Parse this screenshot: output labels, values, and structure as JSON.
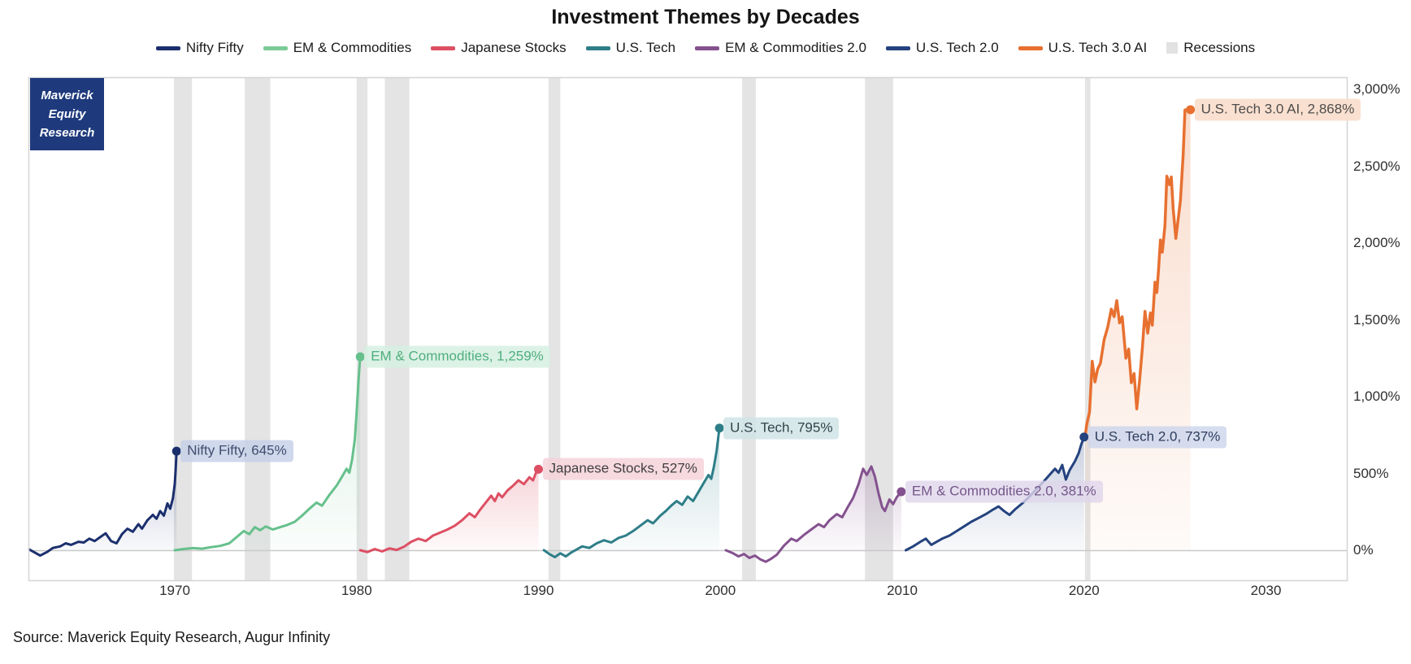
{
  "title": "Investment Themes by Decades",
  "source": "Source: Maverick Equity Research, Augur Infinity",
  "logo": {
    "lines": [
      "Maverick",
      "Equity",
      "Research"
    ],
    "bg": "#1e3a7c",
    "text_color": "#ffffff"
  },
  "legend": [
    {
      "label": "Nifty Fifty",
      "color": "#1b2f6d",
      "type": "line"
    },
    {
      "label": "EM & Commodities",
      "color": "#7ccb96",
      "type": "line"
    },
    {
      "label": "Japanese Stocks",
      "color": "#dd4f63",
      "type": "line"
    },
    {
      "label": "U.S. Tech",
      "color": "#2e7e88",
      "type": "line"
    },
    {
      "label": "EM & Commodities 2.0",
      "color": "#84518f",
      "type": "line"
    },
    {
      "label": "U.S. Tech 2.0",
      "color": "#24427e",
      "type": "line"
    },
    {
      "label": "U.S. Tech 3.0 AI",
      "color": "#e77030",
      "type": "line"
    },
    {
      "label": "Recessions",
      "color": "#e2e2e2",
      "type": "box"
    }
  ],
  "chart_data": {
    "type": "line",
    "title": "Investment Themes by Decades",
    "xlabel": "",
    "ylabel": "",
    "x_range": [
      1962,
      2034.5
    ],
    "y_range_pct": [
      -160,
      3080
    ],
    "grid": "zero-line-only",
    "legend_position": "top-center",
    "axis_line_color": "#d4d4d4",
    "zero_line_color": "#c9c9c9",
    "recession_color": "#e4e4e4",
    "x_ticks": [
      {
        "value": 1970,
        "label": "1970"
      },
      {
        "value": 1980,
        "label": "1980"
      },
      {
        "value": 1990,
        "label": "1990"
      },
      {
        "value": 2000,
        "label": "2000"
      },
      {
        "value": 2010,
        "label": "2010"
      },
      {
        "value": 2020,
        "label": "2020"
      },
      {
        "value": 2030,
        "label": "2030"
      }
    ],
    "y_ticks": [
      {
        "value": 0,
        "label": "0%"
      },
      {
        "value": 500,
        "label": "500%"
      },
      {
        "value": 1000,
        "label": "1,000%"
      },
      {
        "value": 1500,
        "label": "1,500%"
      },
      {
        "value": 2000,
        "label": "2,000%"
      },
      {
        "value": 2500,
        "label": "2,500%"
      },
      {
        "value": 3000,
        "label": "3,000%"
      }
    ],
    "recessions": [
      [
        1969.95,
        1970.95
      ],
      [
        1973.85,
        1975.25
      ],
      [
        1980.0,
        1980.6
      ],
      [
        1981.55,
        1982.9
      ],
      [
        1990.55,
        1991.2
      ],
      [
        2001.2,
        2001.95
      ],
      [
        2007.95,
        2009.5
      ],
      [
        2020.05,
        2020.35
      ]
    ],
    "series": [
      {
        "name": "Nifty Fifty",
        "color": "#1b2f6d",
        "end_value_pct": 645,
        "points": [
          [
            1962.0,
            5
          ],
          [
            1962.3,
            -15
          ],
          [
            1962.6,
            -35
          ],
          [
            1963.0,
            -10
          ],
          [
            1963.3,
            15
          ],
          [
            1963.7,
            25
          ],
          [
            1964.0,
            45
          ],
          [
            1964.3,
            35
          ],
          [
            1964.7,
            55
          ],
          [
            1965.0,
            50
          ],
          [
            1965.3,
            75
          ],
          [
            1965.6,
            60
          ],
          [
            1965.9,
            85
          ],
          [
            1966.2,
            110
          ],
          [
            1966.5,
            60
          ],
          [
            1966.8,
            45
          ],
          [
            1967.1,
            105
          ],
          [
            1967.4,
            140
          ],
          [
            1967.7,
            120
          ],
          [
            1968.0,
            170
          ],
          [
            1968.2,
            140
          ],
          [
            1968.5,
            195
          ],
          [
            1968.8,
            230
          ],
          [
            1969.0,
            205
          ],
          [
            1969.2,
            255
          ],
          [
            1969.4,
            225
          ],
          [
            1969.6,
            305
          ],
          [
            1969.75,
            270
          ],
          [
            1969.9,
            340
          ],
          [
            1970.0,
            430
          ],
          [
            1970.05,
            520
          ],
          [
            1970.1,
            645
          ]
        ]
      },
      {
        "name": "EM & Commodities",
        "color": "#66c08c",
        "end_value_pct": 1259,
        "points": [
          [
            1970.0,
            0
          ],
          [
            1970.5,
            8
          ],
          [
            1971.0,
            14
          ],
          [
            1971.5,
            10
          ],
          [
            1972.0,
            20
          ],
          [
            1972.5,
            28
          ],
          [
            1973.0,
            45
          ],
          [
            1973.4,
            85
          ],
          [
            1973.8,
            125
          ],
          [
            1974.1,
            105
          ],
          [
            1974.4,
            150
          ],
          [
            1974.7,
            130
          ],
          [
            1975.0,
            155
          ],
          [
            1975.4,
            135
          ],
          [
            1975.8,
            150
          ],
          [
            1976.2,
            165
          ],
          [
            1976.6,
            185
          ],
          [
            1977.0,
            225
          ],
          [
            1977.4,
            270
          ],
          [
            1977.8,
            310
          ],
          [
            1978.1,
            290
          ],
          [
            1978.5,
            360
          ],
          [
            1978.9,
            420
          ],
          [
            1979.2,
            480
          ],
          [
            1979.45,
            530
          ],
          [
            1979.6,
            505
          ],
          [
            1979.75,
            590
          ],
          [
            1979.9,
            720
          ],
          [
            1980.0,
            900
          ],
          [
            1980.1,
            1100
          ],
          [
            1980.2,
            1259
          ]
        ]
      },
      {
        "name": "Japanese Stocks",
        "color": "#dd4f63",
        "end_value_pct": 527,
        "points": [
          [
            1980.2,
            0
          ],
          [
            1980.6,
            -12
          ],
          [
            1981.0,
            8
          ],
          [
            1981.4,
            -8
          ],
          [
            1981.8,
            12
          ],
          [
            1982.2,
            2
          ],
          [
            1982.6,
            22
          ],
          [
            1983.0,
            55
          ],
          [
            1983.4,
            75
          ],
          [
            1983.8,
            60
          ],
          [
            1984.2,
            95
          ],
          [
            1984.6,
            115
          ],
          [
            1985.0,
            135
          ],
          [
            1985.4,
            160
          ],
          [
            1985.8,
            195
          ],
          [
            1986.2,
            240
          ],
          [
            1986.5,
            215
          ],
          [
            1986.8,
            265
          ],
          [
            1987.1,
            310
          ],
          [
            1987.4,
            355
          ],
          [
            1987.6,
            320
          ],
          [
            1987.8,
            370
          ],
          [
            1988.0,
            345
          ],
          [
            1988.3,
            390
          ],
          [
            1988.6,
            420
          ],
          [
            1988.9,
            455
          ],
          [
            1989.2,
            430
          ],
          [
            1989.5,
            475
          ],
          [
            1989.7,
            455
          ],
          [
            1989.85,
            500
          ],
          [
            1990.0,
            527
          ]
        ]
      },
      {
        "name": "U.S. Tech",
        "color": "#2e7e88",
        "end_value_pct": 795,
        "points": [
          [
            1990.3,
            0
          ],
          [
            1990.6,
            -25
          ],
          [
            1990.9,
            -45
          ],
          [
            1991.2,
            -20
          ],
          [
            1991.5,
            -40
          ],
          [
            1991.8,
            -15
          ],
          [
            1992.1,
            5
          ],
          [
            1992.4,
            25
          ],
          [
            1992.8,
            15
          ],
          [
            1993.2,
            45
          ],
          [
            1993.6,
            65
          ],
          [
            1994.0,
            50
          ],
          [
            1994.4,
            80
          ],
          [
            1994.8,
            95
          ],
          [
            1995.2,
            125
          ],
          [
            1995.6,
            160
          ],
          [
            1996.0,
            195
          ],
          [
            1996.3,
            175
          ],
          [
            1996.7,
            225
          ],
          [
            1997.0,
            255
          ],
          [
            1997.3,
            290
          ],
          [
            1997.6,
            320
          ],
          [
            1997.9,
            295
          ],
          [
            1998.2,
            350
          ],
          [
            1998.5,
            320
          ],
          [
            1998.8,
            380
          ],
          [
            1999.1,
            440
          ],
          [
            1999.35,
            490
          ],
          [
            1999.5,
            465
          ],
          [
            1999.65,
            545
          ],
          [
            1999.8,
            650
          ],
          [
            1999.95,
            795
          ]
        ]
      },
      {
        "name": "EM & Commodities 2.0",
        "color": "#84518f",
        "end_value_pct": 381,
        "points": [
          [
            2000.3,
            0
          ],
          [
            2000.7,
            -20
          ],
          [
            2001.0,
            -40
          ],
          [
            2001.3,
            -25
          ],
          [
            2001.6,
            -50
          ],
          [
            2001.9,
            -35
          ],
          [
            2002.2,
            -60
          ],
          [
            2002.5,
            -75
          ],
          [
            2002.8,
            -55
          ],
          [
            2003.1,
            -30
          ],
          [
            2003.5,
            30
          ],
          [
            2003.9,
            75
          ],
          [
            2004.2,
            60
          ],
          [
            2004.6,
            100
          ],
          [
            2005.0,
            135
          ],
          [
            2005.4,
            170
          ],
          [
            2005.7,
            150
          ],
          [
            2006.0,
            195
          ],
          [
            2006.4,
            235
          ],
          [
            2006.7,
            215
          ],
          [
            2007.0,
            280
          ],
          [
            2007.3,
            340
          ],
          [
            2007.6,
            430
          ],
          [
            2007.85,
            530
          ],
          [
            2008.05,
            490
          ],
          [
            2008.3,
            545
          ],
          [
            2008.5,
            480
          ],
          [
            2008.7,
            370
          ],
          [
            2008.9,
            280
          ],
          [
            2009.05,
            255
          ],
          [
            2009.3,
            330
          ],
          [
            2009.5,
            300
          ],
          [
            2009.7,
            345
          ],
          [
            2009.95,
            381
          ]
        ]
      },
      {
        "name": "U.S. Tech 2.0",
        "color": "#24427e",
        "end_value_pct": 737,
        "points": [
          [
            2010.2,
            0
          ],
          [
            2010.6,
            25
          ],
          [
            2011.0,
            55
          ],
          [
            2011.3,
            75
          ],
          [
            2011.6,
            35
          ],
          [
            2011.9,
            55
          ],
          [
            2012.2,
            75
          ],
          [
            2012.6,
            95
          ],
          [
            2013.0,
            125
          ],
          [
            2013.4,
            155
          ],
          [
            2013.8,
            185
          ],
          [
            2014.2,
            210
          ],
          [
            2014.6,
            235
          ],
          [
            2015.0,
            265
          ],
          [
            2015.3,
            285
          ],
          [
            2015.6,
            255
          ],
          [
            2015.9,
            230
          ],
          [
            2016.2,
            265
          ],
          [
            2016.6,
            305
          ],
          [
            2017.0,
            350
          ],
          [
            2017.4,
            400
          ],
          [
            2017.8,
            450
          ],
          [
            2018.1,
            490
          ],
          [
            2018.4,
            530
          ],
          [
            2018.6,
            505
          ],
          [
            2018.8,
            555
          ],
          [
            2019.0,
            460
          ],
          [
            2019.2,
            520
          ],
          [
            2019.5,
            580
          ],
          [
            2019.7,
            630
          ],
          [
            2019.85,
            690
          ],
          [
            2020.0,
            737
          ]
        ]
      },
      {
        "name": "U.S. Tech 3.0 AI",
        "color": "#e77030",
        "end_value_pct": 2868,
        "points": [
          [
            2020.05,
            737
          ],
          [
            2020.15,
            820
          ],
          [
            2020.3,
            900
          ],
          [
            2020.45,
            1230
          ],
          [
            2020.6,
            1095
          ],
          [
            2020.75,
            1180
          ],
          [
            2020.9,
            1217
          ],
          [
            2021.1,
            1370
          ],
          [
            2021.3,
            1450
          ],
          [
            2021.5,
            1570
          ],
          [
            2021.65,
            1520
          ],
          [
            2021.8,
            1625
          ],
          [
            2021.95,
            1480
          ],
          [
            2022.1,
            1520
          ],
          [
            2022.3,
            1250
          ],
          [
            2022.45,
            1310
          ],
          [
            2022.6,
            1090
          ],
          [
            2022.75,
            1150
          ],
          [
            2022.9,
            920
          ],
          [
            2023.05,
            1100
          ],
          [
            2023.2,
            1310
          ],
          [
            2023.35,
            1555
          ],
          [
            2023.5,
            1413
          ],
          [
            2023.65,
            1545
          ],
          [
            2023.75,
            1465
          ],
          [
            2023.9,
            1745
          ],
          [
            2024.0,
            1677
          ],
          [
            2024.1,
            1835
          ],
          [
            2024.2,
            2020
          ],
          [
            2024.3,
            1940
          ],
          [
            2024.45,
            2115
          ],
          [
            2024.55,
            2435
          ],
          [
            2024.7,
            2380
          ],
          [
            2024.8,
            2430
          ],
          [
            2024.9,
            2222
          ],
          [
            2025.05,
            2030
          ],
          [
            2025.2,
            2180
          ],
          [
            2025.3,
            2275
          ],
          [
            2025.45,
            2575
          ],
          [
            2025.55,
            2866
          ],
          [
            2025.85,
            2868
          ]
        ]
      }
    ],
    "annotations": [
      {
        "text": "Nifty Fifty, 645%",
        "year": 1970.1,
        "pct": 645,
        "text_color": "#3f4d6d",
        "bg": "rgba(196,206,231,0.8)",
        "dot_color": "#1b2f6d"
      },
      {
        "text": "EM & Commodities, 1,259%",
        "year": 1980.2,
        "pct": 1259,
        "text_color": "#4fae7d",
        "bg": "rgba(214,240,226,0.85)",
        "dot_color": "#66c08c"
      },
      {
        "text": "Japanese Stocks, 527%",
        "year": 1990.0,
        "pct": 527,
        "text_color": "#404040",
        "bg": "rgba(246,210,218,0.85)",
        "dot_color": "#dd4f63"
      },
      {
        "text": "U.S. Tech, 795%",
        "year": 1999.95,
        "pct": 795,
        "text_color": "#33434a",
        "bg": "rgba(208,228,231,0.85)",
        "dot_color": "#2e7e88"
      },
      {
        "text": "EM & Commodities 2.0, 381%",
        "year": 2009.95,
        "pct": 381,
        "text_color": "#75568a",
        "bg": "rgba(223,214,235,0.8)",
        "dot_color": "#84518f"
      },
      {
        "text": "U.S. Tech 2.0, 737%",
        "year": 2020.0,
        "pct": 737,
        "text_color": "#2e3d5c",
        "bg": "rgba(203,212,235,0.8)",
        "dot_color": "#24427e"
      },
      {
        "text": "U.S. Tech 3.0 AI, 2,868%",
        "year": 2025.85,
        "pct": 2868,
        "text_color": "#4d4d4d",
        "bg": "rgba(250,221,203,0.9)",
        "dot_color": "#e77030"
      }
    ]
  }
}
